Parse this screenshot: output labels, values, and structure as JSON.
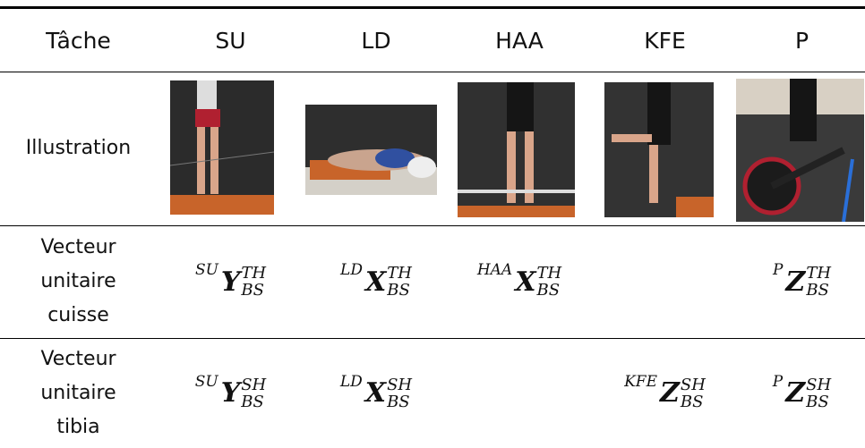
{
  "table": {
    "header": [
      "Tâche",
      "SU",
      "LD",
      "HAA",
      "KFE",
      "P"
    ],
    "rows": [
      {
        "label": [
          "Illustration"
        ]
      },
      {
        "label": [
          "Vecteur",
          "unitaire",
          "cuisse"
        ],
        "cells": [
          {
            "pre": "SU",
            "base": "Y",
            "sup": "TH",
            "sub": "BS"
          },
          {
            "pre": "LD",
            "base": "X",
            "sup": "TH",
            "sub": "BS"
          },
          {
            "pre": "HAA",
            "base": "X",
            "sup": "TH",
            "sub": "BS"
          },
          null,
          {
            "pre": "P",
            "base": "Z",
            "sup": "TH",
            "sub": "BS"
          }
        ]
      },
      {
        "label": [
          "Vecteur",
          "unitaire",
          "tibia"
        ],
        "cells": [
          {
            "pre": "SU",
            "base": "Y",
            "sup": "SH",
            "sub": "BS"
          },
          {
            "pre": "LD",
            "base": "X",
            "sup": "SH",
            "sub": "BS"
          },
          null,
          {
            "pre": "KFE",
            "base": "Z",
            "sup": "SH",
            "sub": "BS"
          },
          {
            "pre": "P",
            "base": "Z",
            "sup": "SH",
            "sub": "BS"
          }
        ]
      }
    ]
  }
}
